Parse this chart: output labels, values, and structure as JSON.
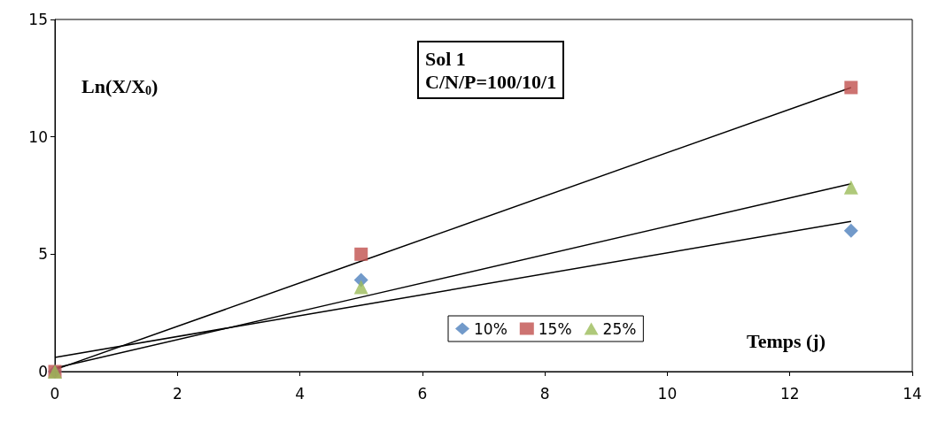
{
  "chart_data": {
    "type": "scatter",
    "title": "Sol 1",
    "subtitle": "C/N/P=100/10/1",
    "xlabel": "Temps (j)",
    "ylabel": "Ln(X/X$_{0}$)",
    "x": [
      0,
      5,
      13
    ],
    "series": [
      {
        "name": "10%",
        "color": "#4f81bd",
        "marker": "diamond",
        "values": [
          0,
          3.9,
          6.0
        ]
      },
      {
        "name": "15%",
        "color": "#c0504d",
        "marker": "square",
        "values": [
          0,
          5.0,
          12.1
        ]
      },
      {
        "name": "25%",
        "color": "#9bbb59",
        "marker": "triangle",
        "values": [
          0,
          3.6,
          7.85
        ]
      },
      {
        "type": "line",
        "color": "#000000",
        "marker": "none",
        "values": [
          0.6,
          2.83,
          6.4
        ]
      },
      {
        "type": "line",
        "color": "#000000",
        "marker": "none",
        "values": [
          0.08,
          4.7,
          12.1
        ]
      },
      {
        "type": "line",
        "color": "#000000",
        "marker": "none",
        "values": [
          0.15,
          3.17,
          8.0
        ]
      }
    ],
    "xlim": [
      0,
      14
    ],
    "xticks": [
      0,
      2,
      4,
      6,
      8,
      10,
      12,
      14
    ],
    "ylim": [
      0,
      15
    ],
    "yticks": [
      0,
      5,
      10,
      15
    ],
    "grid": false,
    "legend": "bottom"
  }
}
